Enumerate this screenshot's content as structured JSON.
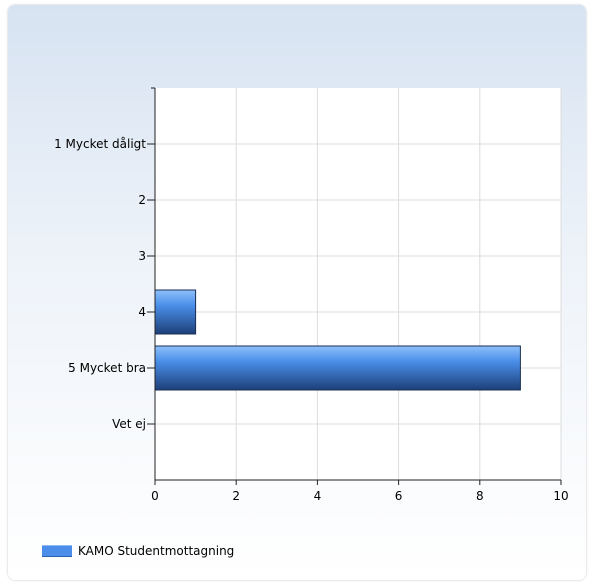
{
  "chart_data": {
    "type": "bar",
    "orientation": "horizontal",
    "title": "",
    "xlabel": "",
    "ylabel": "",
    "categories": [
      "1 Mycket dåligt",
      "2",
      "3",
      "4",
      "5 Mycket bra",
      "Vet ej"
    ],
    "series": [
      {
        "name": "KAMO Studentmottagning",
        "values": [
          0,
          0,
          0,
          1,
          9,
          0
        ],
        "color": "#4a8ee9"
      }
    ],
    "xlim": [
      0,
      10
    ],
    "xticks": [
      0,
      2,
      4,
      6,
      8,
      10
    ],
    "grid": true,
    "legend_position": "bottom-left"
  }
}
